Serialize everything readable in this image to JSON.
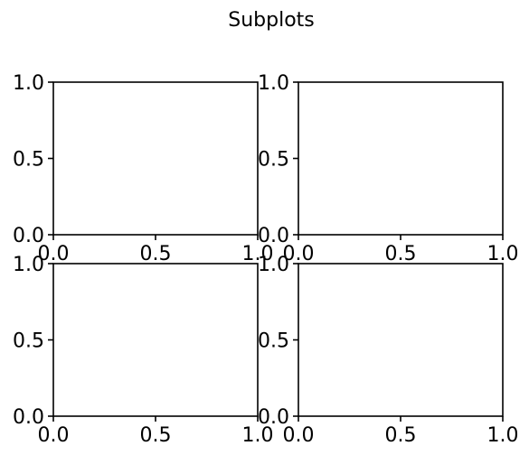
{
  "figure": {
    "title": "Subplots"
  },
  "chart_data": [
    {
      "type": "line",
      "title": "",
      "xlabel": "",
      "ylabel": "",
      "series": [],
      "xlim": [
        0.0,
        1.0
      ],
      "ylim": [
        0.0,
        1.0
      ],
      "xticks": [
        0.0,
        0.5,
        1.0
      ],
      "yticks": [
        0.0,
        0.5,
        1.0
      ],
      "xtick_labels": [
        "0.0",
        "0.5",
        "1.0"
      ],
      "ytick_labels": [
        "0.0",
        "0.5",
        "1.0"
      ],
      "grid": false
    },
    {
      "type": "line",
      "title": "",
      "xlabel": "",
      "ylabel": "",
      "series": [],
      "xlim": [
        0.0,
        1.0
      ],
      "ylim": [
        0.0,
        1.0
      ],
      "xticks": [
        0.0,
        0.5,
        1.0
      ],
      "yticks": [
        0.0,
        0.5,
        1.0
      ],
      "xtick_labels": [
        "0.0",
        "0.5",
        "1.0"
      ],
      "ytick_labels": [
        "0.0",
        "0.5",
        "1.0"
      ],
      "grid": false
    },
    {
      "type": "line",
      "title": "",
      "xlabel": "",
      "ylabel": "",
      "series": [],
      "xlim": [
        0.0,
        1.0
      ],
      "ylim": [
        0.0,
        1.0
      ],
      "xticks": [
        0.0,
        0.5,
        1.0
      ],
      "yticks": [
        0.0,
        0.5,
        1.0
      ],
      "xtick_labels": [
        "0.0",
        "0.5",
        "1.0"
      ],
      "ytick_labels": [
        "0.0",
        "0.5",
        "1.0"
      ],
      "grid": false
    },
    {
      "type": "line",
      "title": "",
      "xlabel": "",
      "ylabel": "",
      "series": [],
      "xlim": [
        0.0,
        1.0
      ],
      "ylim": [
        0.0,
        1.0
      ],
      "xticks": [
        0.0,
        0.5,
        1.0
      ],
      "yticks": [
        0.0,
        0.5,
        1.0
      ],
      "xtick_labels": [
        "0.0",
        "0.5",
        "1.0"
      ],
      "ytick_labels": [
        "0.0",
        "0.5",
        "1.0"
      ],
      "grid": false
    }
  ]
}
